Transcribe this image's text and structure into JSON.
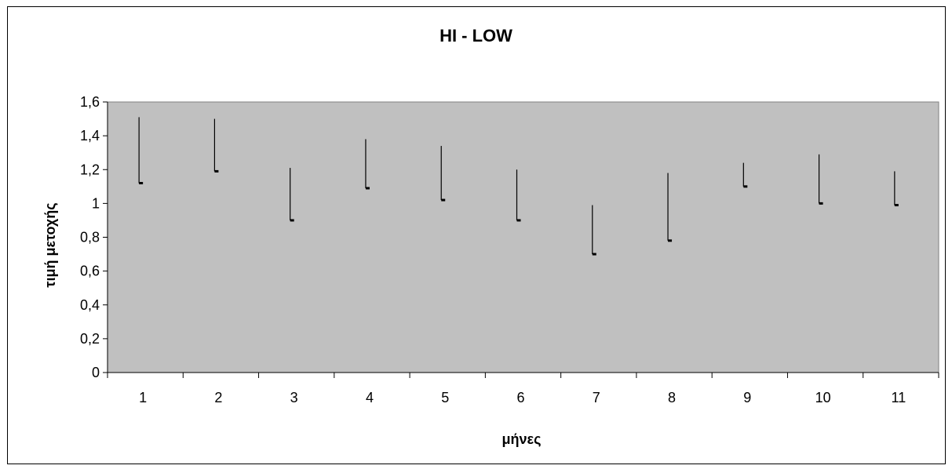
{
  "chart_data": {
    "type": "hi-low",
    "title": "HI - LOW",
    "xlabel": "μήνες",
    "ylabel": "τιμή μετοχής",
    "categories": [
      "1",
      "2",
      "3",
      "4",
      "5",
      "6",
      "7",
      "8",
      "9",
      "10",
      "11"
    ],
    "series": [
      {
        "name": "",
        "high": [
          1.51,
          1.5,
          1.21,
          1.38,
          1.34,
          1.2,
          0.99,
          1.18,
          1.24,
          1.29,
          1.19
        ]
      },
      {
        "name": "",
        "low": [
          1.12,
          1.19,
          0.9,
          1.09,
          1.02,
          0.9,
          0.7,
          0.78,
          1.1,
          1.0,
          0.99
        ]
      }
    ],
    "ylim": [
      0,
      1.6
    ],
    "yticks": [
      "0",
      "0,2",
      "0,4",
      "0,6",
      "0,8",
      "1",
      "1,2",
      "1,4",
      "1,6"
    ],
    "grid": false,
    "legend": "none",
    "colors": {
      "plot_background": "#c0c0c0",
      "line": "#000000",
      "frame": "#000000"
    }
  }
}
